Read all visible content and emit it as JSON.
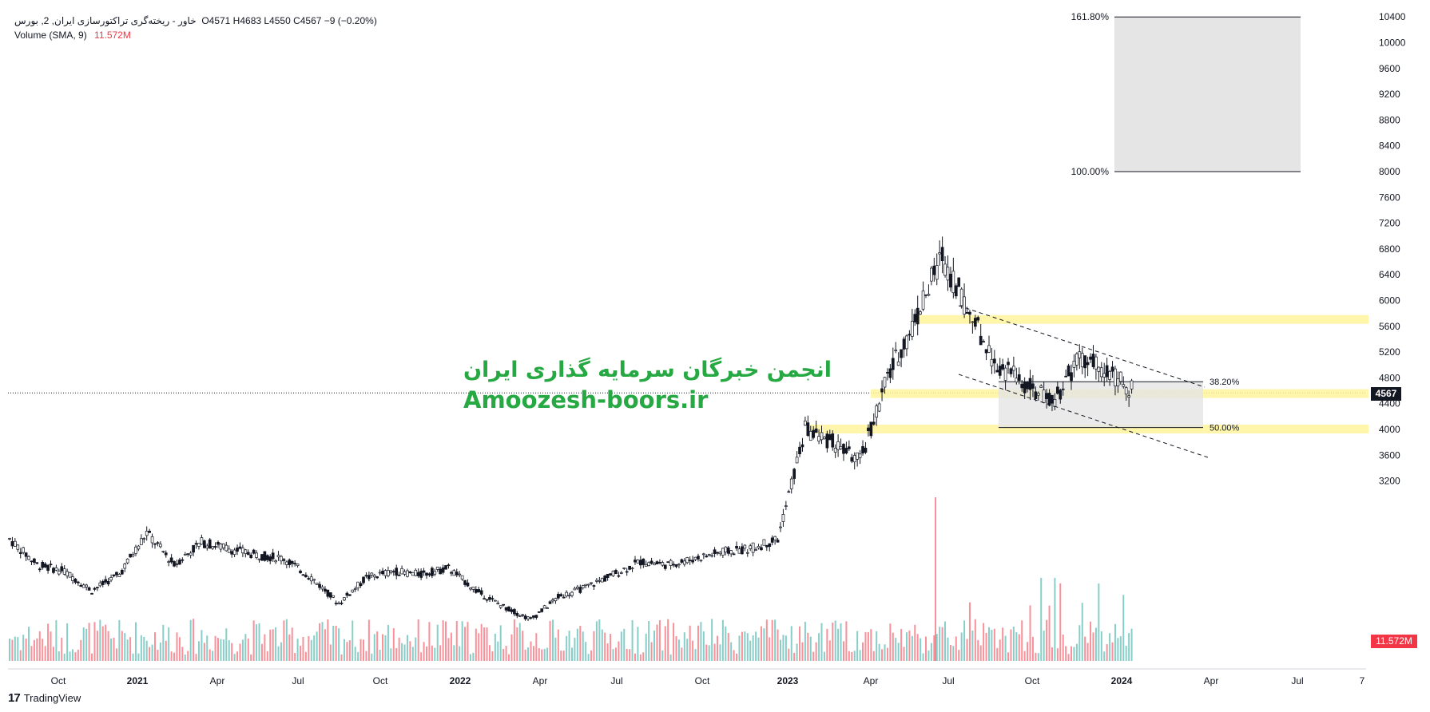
{
  "legend": {
    "symbol": "خاور - ریخته‌گری تراکتورسازی ایران, 2",
    "exchange": "بورس",
    "ohlc": "O4571  H4683  L4550  C4567  −9 (−0.20%)",
    "volume_label": "Volume (SMA, 9)",
    "volume_value": "11.572M"
  },
  "watermark": {
    "persian": "انجمن خبرگان سرمایه گذاری ایران",
    "site": "Amoozesh-boors.ir"
  },
  "brand": {
    "logo": "17",
    "name": "TradingView"
  },
  "last_price_label": "4567",
  "colors": {
    "up": "#26a69a",
    "down": "#f23645",
    "candle": "#131722",
    "zone": "#fff59d",
    "fib_box": "#e5e5e5"
  },
  "chart_data": {
    "type": "candlestick",
    "y_axis": {
      "min": 3200,
      "max": 10400,
      "ticks": [
        3200,
        3600,
        4000,
        4400,
        4800,
        5200,
        5600,
        6000,
        6400,
        6800,
        7200,
        7600,
        8000,
        8400,
        8800,
        9200,
        9600,
        10000,
        10400
      ]
    },
    "x_axis": {
      "labels": [
        "Oct",
        "2021",
        "Apr",
        "Jul",
        "Oct",
        "2022",
        "Apr",
        "Jul",
        "Oct",
        "2023",
        "Apr",
        "Jul",
        "Oct",
        "2024",
        "Apr",
        "Jul",
        "7"
      ]
    },
    "last_price": 4567,
    "price_series": [
      [
        "2020-08",
        2300
      ],
      [
        "2020-09",
        1900
      ],
      [
        "2020-10",
        1800
      ],
      [
        "2020-11",
        1500
      ],
      [
        "2020-12",
        1750
      ],
      [
        "2021-01",
        2400
      ],
      [
        "2021-02",
        1900
      ],
      [
        "2021-03",
        2250
      ],
      [
        "2021-04",
        2150
      ],
      [
        "2021-05",
        2050
      ],
      [
        "2021-06",
        2000
      ],
      [
        "2021-07",
        1700
      ],
      [
        "2021-08",
        1300
      ],
      [
        "2021-09",
        1700
      ],
      [
        "2021-10",
        1800
      ],
      [
        "2021-11",
        1750
      ],
      [
        "2021-12",
        1850
      ],
      [
        "2022-01",
        1500
      ],
      [
        "2022-02",
        1250
      ],
      [
        "2022-03",
        1050
      ],
      [
        "2022-04",
        1400
      ],
      [
        "2022-05",
        1550
      ],
      [
        "2022-06",
        1750
      ],
      [
        "2022-07",
        1950
      ],
      [
        "2022-08",
        1900
      ],
      [
        "2022-09",
        2000
      ],
      [
        "2022-10",
        2100
      ],
      [
        "2022-11",
        2150
      ],
      [
        "2022-12",
        2300
      ],
      [
        "2023-01",
        4000
      ],
      [
        "2023-02",
        3800
      ],
      [
        "2023-03",
        3500
      ],
      [
        "2023-04",
        4800
      ],
      [
        "2023-05",
        5700
      ],
      [
        "2023-06",
        6700
      ],
      [
        "2023-07",
        5800
      ],
      [
        "2023-08",
        5000
      ],
      [
        "2023-09",
        4700
      ],
      [
        "2023-10",
        4400
      ],
      [
        "2023-11",
        5100
      ],
      [
        "2023-12",
        4900
      ],
      [
        "2024-01",
        4567
      ]
    ],
    "support_zones": [
      {
        "price": 5700
      },
      {
        "price": 4550
      },
      {
        "price": 4000
      }
    ],
    "fibonacci": [
      {
        "label": "161.80%",
        "price": 10400
      },
      {
        "label": "100.00%",
        "price": 8000
      },
      {
        "label": "38.20%",
        "price": 4740
      },
      {
        "label": "50.00%",
        "price": 4030
      }
    ],
    "volume_label": "11.572M"
  }
}
